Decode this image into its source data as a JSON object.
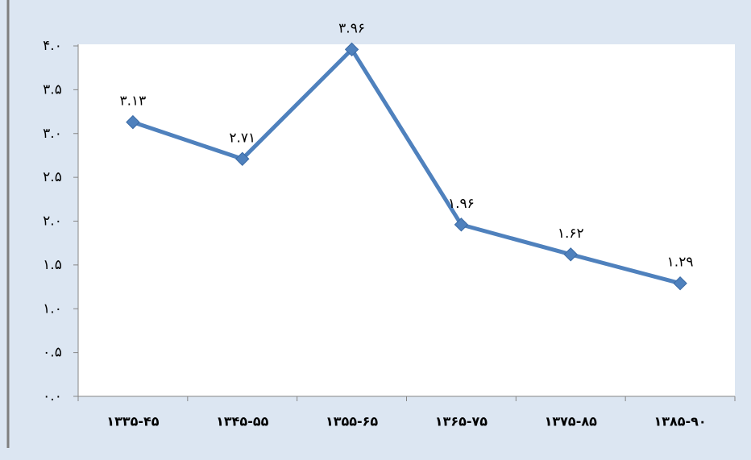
{
  "chart_data": {
    "type": "line",
    "categories": [
      "۱۳۳۵-۴۵",
      "۱۳۴۵-۵۵",
      "۱۳۵۵-۶۵",
      "۱۳۶۵-۷۵",
      "۱۳۷۵-۸۵",
      "۱۳۸۵-۹۰"
    ],
    "series": [
      {
        "color": "#4f81bd",
        "values": [
          3.13,
          2.71,
          3.96,
          1.96,
          1.62,
          1.29
        ],
        "value_labels": [
          "۳.۱۳",
          "۲.۷۱",
          "۳.۹۶",
          "۱.۹۶",
          "۱.۶۲",
          "۱.۲۹"
        ]
      }
    ],
    "ylim": [
      0,
      4
    ],
    "yticks": [
      {
        "value": 0,
        "label": "۰.۰"
      },
      {
        "value": 0.5,
        "label": "۰.۵"
      },
      {
        "value": 1,
        "label": "۱.۰"
      },
      {
        "value": 1.5,
        "label": "۱.۵"
      },
      {
        "value": 2,
        "label": "۲.۰"
      },
      {
        "value": 2.5,
        "label": "۲.۵"
      },
      {
        "value": 3,
        "label": "۳.۰"
      },
      {
        "value": 3.5,
        "label": "۳.۵"
      },
      {
        "value": 4,
        "label": "۴.۰"
      }
    ]
  }
}
